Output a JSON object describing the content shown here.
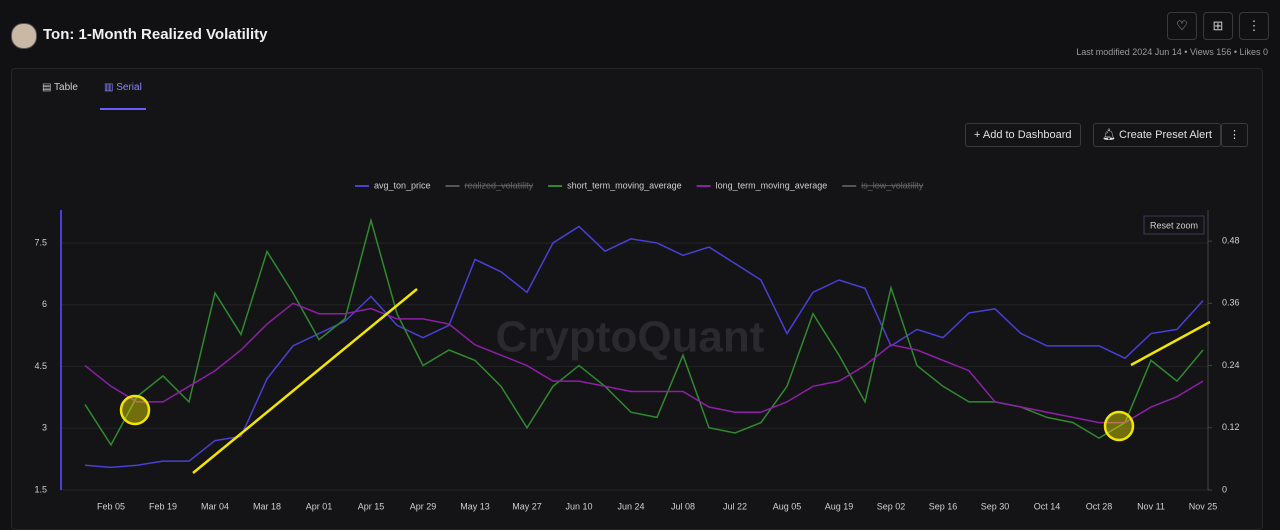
{
  "header": {
    "title": "Ton: 1-Month Realized Volatility",
    "meta": "Last modified 2024 Jun 14 • Views 156 • Likes 0"
  },
  "tabs": [
    "Table",
    "Serial"
  ],
  "active_tab": 1,
  "buttons": [
    "Add to Dashboard",
    "Create Preset Alert"
  ],
  "reset_zoom": "Reset zoom",
  "watermark": "CryptoQuant",
  "chart_data": {
    "type": "line",
    "categories": [
      null,
      "Feb 05",
      null,
      "Feb 19",
      null,
      "Mar 04",
      null,
      "Mar 18",
      null,
      "Apr 01",
      null,
      "Apr 15",
      null,
      "Apr 29",
      null,
      "May 13",
      null,
      "May 27",
      null,
      "Jun 10",
      null,
      "Jun 24",
      null,
      "Jul 08",
      null,
      "Jul 22",
      null,
      "Aug 05",
      null,
      "Aug 19",
      null,
      "Sep 02",
      null,
      "Sep 16",
      null,
      "Sep 30",
      null,
      "Oct 14",
      null,
      "Oct 28",
      null,
      "Nov 11",
      null,
      "Nov 25"
    ],
    "series": [
      {
        "name": "avg_ton_price",
        "color": "#4a3fd6",
        "axis": "y",
        "values": [
          2.1,
          2.05,
          2.1,
          2.2,
          2.2,
          2.7,
          2.8,
          4.2,
          5.0,
          5.3,
          5.6,
          6.2,
          5.5,
          5.2,
          5.5,
          7.1,
          6.8,
          6.3,
          7.5,
          7.9,
          7.3,
          7.6,
          7.5,
          7.2,
          7.4,
          7.0,
          6.6,
          5.3,
          6.3,
          6.6,
          6.4,
          5.0,
          5.4,
          5.2,
          5.8,
          5.9,
          5.3,
          5.0,
          5.0,
          5.0,
          4.7,
          5.3,
          5.4,
          6.1
        ]
      },
      {
        "name": "short_term_moving_average",
        "color": "#2f8a2f",
        "axis": "y2",
        "values": [
          0.165,
          0.087,
          0.18,
          0.22,
          0.17,
          0.38,
          0.3,
          0.46,
          0.38,
          0.29,
          0.33,
          0.52,
          0.34,
          0.24,
          0.27,
          0.25,
          0.2,
          0.12,
          0.2,
          0.24,
          0.2,
          0.15,
          0.14,
          0.26,
          0.12,
          0.11,
          0.13,
          0.2,
          0.34,
          0.26,
          0.17,
          0.39,
          0.24,
          0.2,
          0.17,
          0.17,
          0.16,
          0.14,
          0.13,
          0.1,
          0.13,
          0.25,
          0.21,
          0.27
        ]
      },
      {
        "name": "long_term_moving_average",
        "color": "#8e1fa8",
        "axis": "y2",
        "values": [
          0.24,
          0.2,
          0.17,
          0.17,
          0.2,
          0.23,
          0.27,
          0.32,
          0.36,
          0.34,
          0.34,
          0.35,
          0.33,
          0.33,
          0.32,
          0.28,
          0.26,
          0.24,
          0.21,
          0.21,
          0.2,
          0.19,
          0.19,
          0.19,
          0.16,
          0.15,
          0.15,
          0.17,
          0.2,
          0.21,
          0.24,
          0.28,
          0.27,
          0.25,
          0.23,
          0.17,
          0.16,
          0.15,
          0.14,
          0.13,
          0.13,
          0.16,
          0.18,
          0.21
        ]
      }
    ],
    "hidden_series": [
      {
        "name": "realized_volatility",
        "color": "#555555"
      },
      {
        "name": "is_low_volatility",
        "color": "#555555"
      }
    ],
    "ylim": [
      1.5,
      8.3
    ],
    "yticks": [
      1.5,
      3,
      4.5,
      6,
      7.5
    ],
    "y2lim": [
      0,
      0.54
    ],
    "y2ticks": [
      0,
      0.12,
      0.24,
      0.36,
      0.48
    ],
    "grid": true
  }
}
